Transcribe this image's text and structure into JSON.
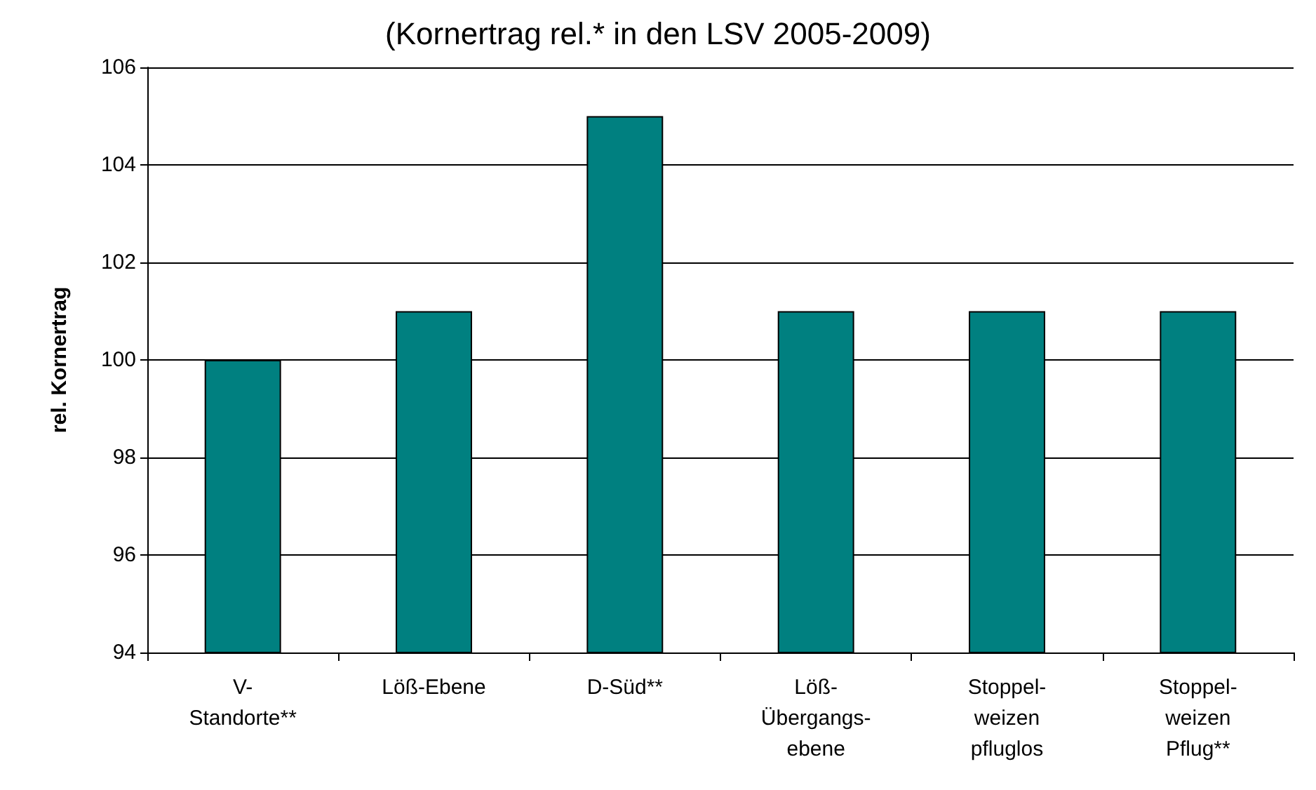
{
  "chart_data": {
    "type": "bar",
    "title": "(Kornertrag rel.* in den LSV 2005-2009)",
    "ylabel": "rel. Kornertrag",
    "categories": [
      "V-\nStandorte**",
      "Löß-Ebene",
      "D-Süd**",
      "Löß-\nÜbergangs-\nebene",
      "Stoppel-\nweizen\npfluglos",
      "Stoppel-\nweizen\nPflug**"
    ],
    "values": [
      100,
      101,
      105,
      101,
      101,
      101
    ],
    "color": "#008080",
    "ylim": [
      94,
      106
    ],
    "yticks": [
      94,
      96,
      98,
      100,
      102,
      104,
      106
    ],
    "grid": "y"
  }
}
